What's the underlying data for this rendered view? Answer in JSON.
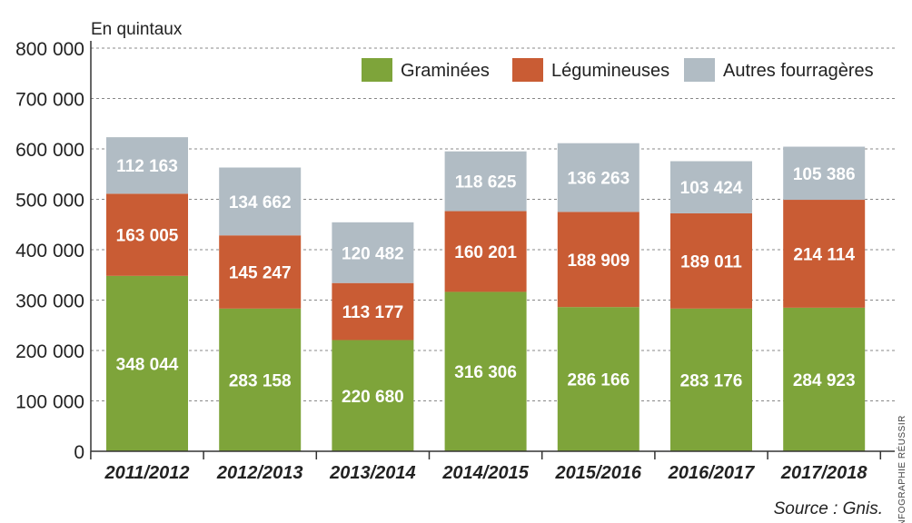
{
  "chart_data": {
    "type": "bar",
    "stacked": true,
    "ylabel": "En quintaux",
    "ylim": [
      0,
      800000
    ],
    "yticks": [
      0,
      100000,
      200000,
      300000,
      400000,
      500000,
      600000,
      700000,
      800000
    ],
    "ytick_labels": [
      "0",
      "100 000",
      "200 000",
      "300 000",
      "400 000",
      "500 000",
      "600 000",
      "700 000",
      "800 000"
    ],
    "grid": "horizontal dashed",
    "legend_position": "top-right",
    "categories": [
      "2011/2012",
      "2012/2013",
      "2013/2014",
      "2014/2015",
      "2015/2016",
      "2016/2017",
      "2017/2018"
    ],
    "series": [
      {
        "name": "Graminées",
        "color": "#7ea43a",
        "values": [
          348044,
          283158,
          220680,
          316306,
          286166,
          283176,
          284923
        ],
        "labels": [
          "348 044",
          "283 158",
          "220 680",
          "316 306",
          "286 166",
          "283 176",
          "284 923"
        ]
      },
      {
        "name": "Légumineuses",
        "color": "#c95c34",
        "values": [
          163005,
          145247,
          113177,
          160201,
          188909,
          189011,
          214114
        ],
        "labels": [
          "163 005",
          "145 247",
          "113 177",
          "160 201",
          "188 909",
          "189 011",
          "214 114"
        ]
      },
      {
        "name": "Autres fourragères",
        "color": "#b1bcc4",
        "values": [
          112163,
          134662,
          120482,
          118625,
          136263,
          103424,
          105386
        ],
        "labels": [
          "112 163",
          "134 662",
          "120 482",
          "118 625",
          "136 263",
          "103 424",
          "105 386"
        ]
      }
    ],
    "source": "Source : Gnis.",
    "credit": "INFOGRAPHIE RÉUSSIR"
  }
}
